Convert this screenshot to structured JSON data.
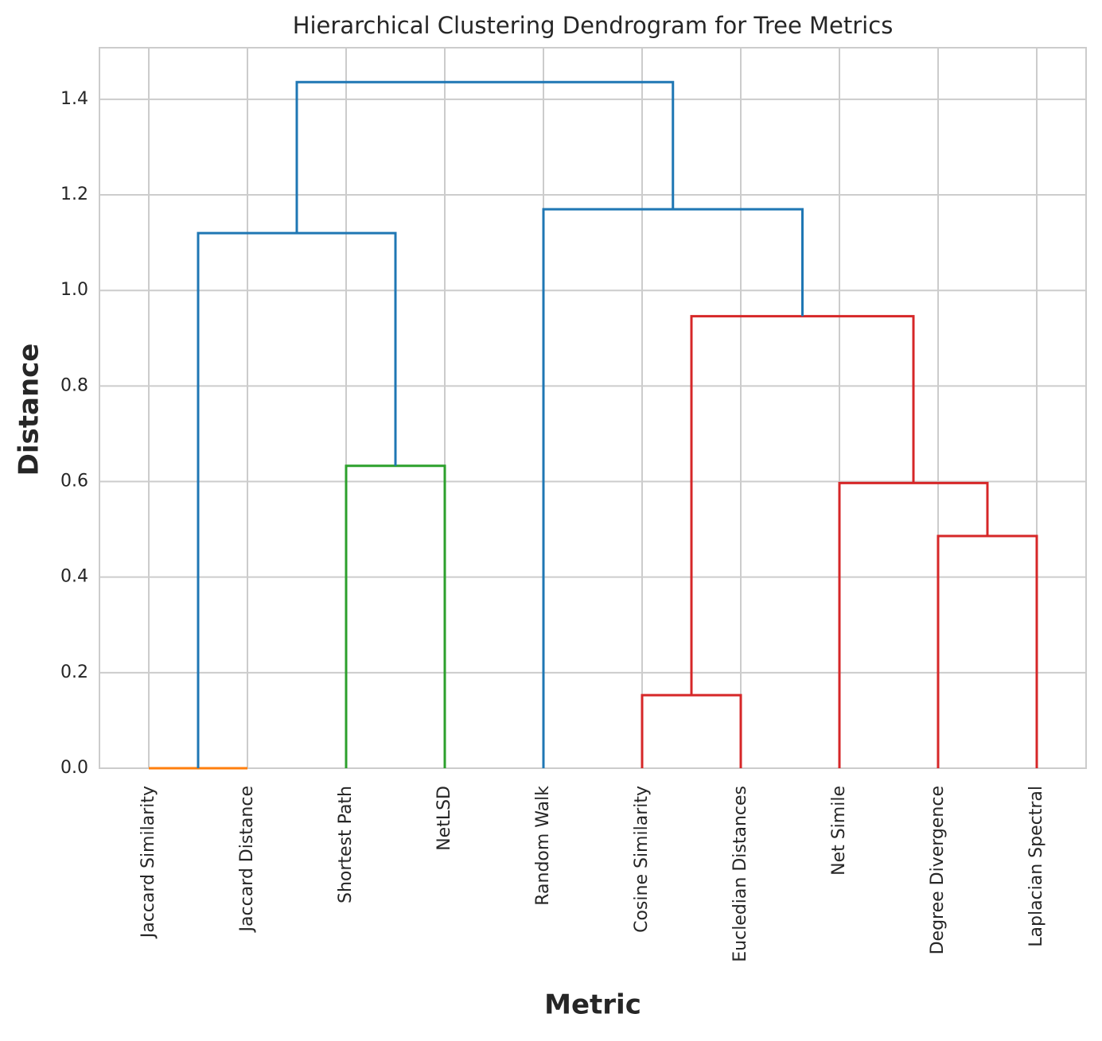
{
  "chart_data": {
    "type": "dendrogram",
    "title": "Hierarchical Clustering Dendrogram for Tree Metrics",
    "xlabel": "Metric",
    "ylabel": "Distance",
    "categories": [
      "Jaccard Similarity",
      "Jaccard Distance",
      "Shortest Path",
      "NetLSD",
      "Random Walk",
      "Cosine Similarity",
      "Eucledian Distances",
      "Net Simile",
      "Degree Divergence",
      "Laplacian Spectral"
    ],
    "merges": [
      {
        "children": [
          0,
          1
        ],
        "height": 0.0,
        "color": "#ff7f0e"
      },
      {
        "children": [
          2,
          3
        ],
        "height": 0.633,
        "color": "#2ca02c"
      },
      {
        "children": [
          5,
          6
        ],
        "height": 0.153,
        "color": "#d62728"
      },
      {
        "children": [
          8,
          9
        ],
        "height": 0.486,
        "color": "#d62728"
      },
      {
        "children": [
          7,
          13
        ],
        "height": 0.597,
        "color": "#d62728"
      },
      {
        "children": [
          12,
          14
        ],
        "height": 0.946,
        "color": "#d62728"
      },
      {
        "children": [
          10,
          11
        ],
        "height": 1.12,
        "color": "#1f77b4"
      },
      {
        "children": [
          4,
          15
        ],
        "height": 1.17,
        "color": "#1f77b4"
      },
      {
        "children": [
          16,
          17
        ],
        "height": 1.436,
        "color": "#1f77b4"
      }
    ],
    "ylim": [
      0,
      1.508
    ],
    "yticks": [
      {
        "value": 0,
        "label": "0.0"
      },
      0.2,
      0.4,
      0.6,
      0.8,
      {
        "value": 1,
        "label": "1.0"
      },
      1.2,
      1.4
    ],
    "grid": true
  }
}
